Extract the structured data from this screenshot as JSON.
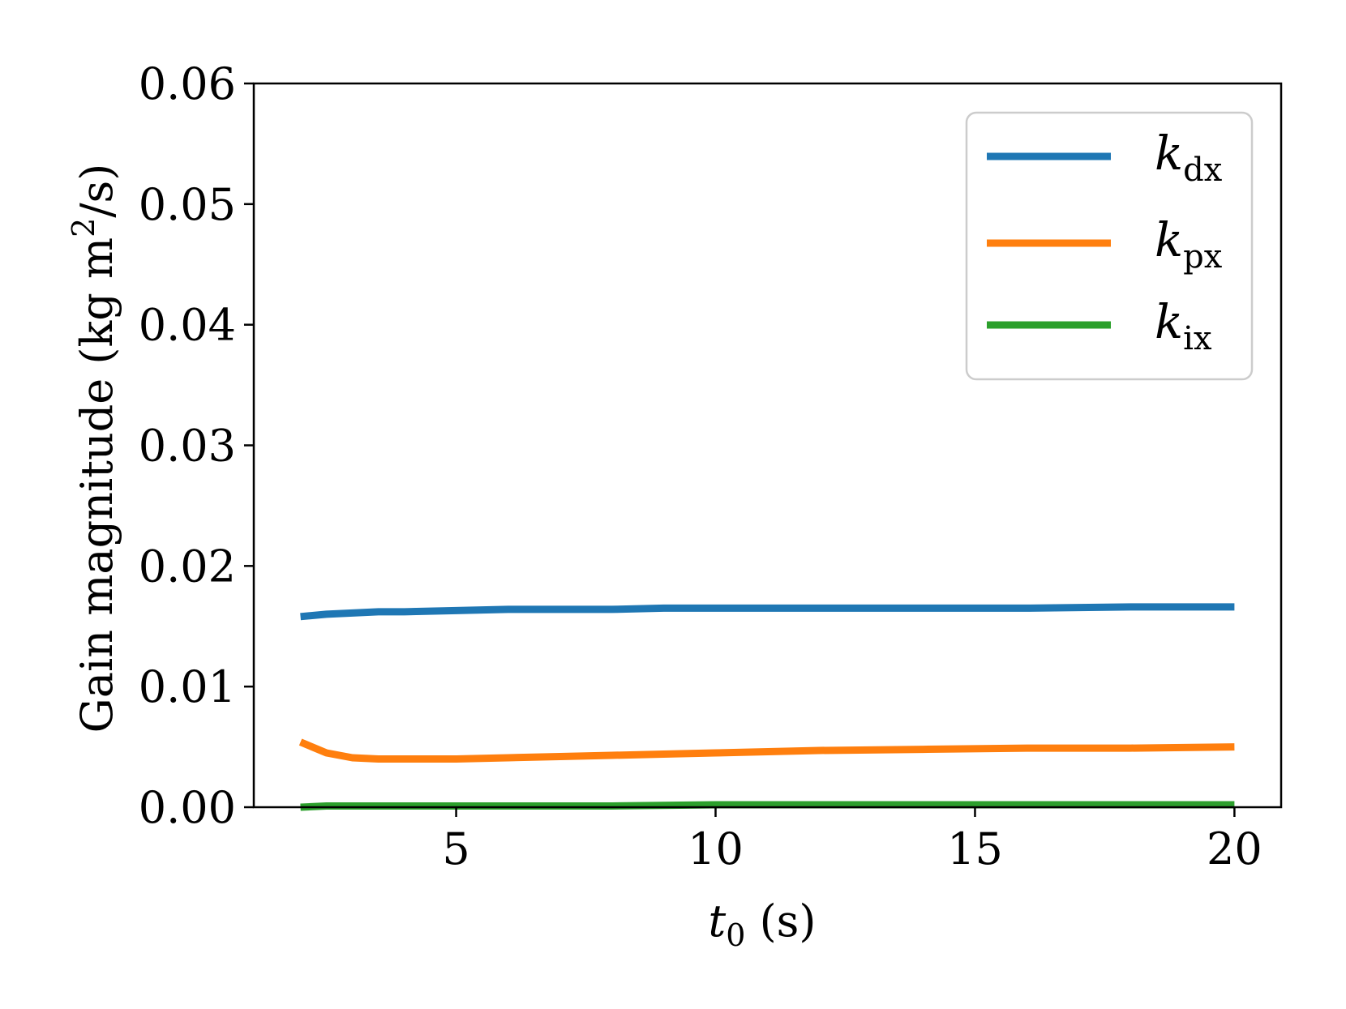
{
  "chart_data": {
    "type": "line",
    "xlabel": {
      "base": "t",
      "sub": "0",
      "unit": " (s)"
    },
    "ylabel": {
      "text": "Gain magnitude (kg m",
      "sup": "2",
      "tail": "/s)"
    },
    "xlim": [
      1.1,
      20.9
    ],
    "ylim": [
      0,
      0.06
    ],
    "xticks": [
      5,
      10,
      15,
      20
    ],
    "xtick_labels": [
      "5",
      "10",
      "15",
      "20"
    ],
    "yticks": [
      0,
      0.01,
      0.02,
      0.03,
      0.04,
      0.05,
      0.06
    ],
    "ytick_labels": [
      "0.00",
      "0.01",
      "0.02",
      "0.03",
      "0.04",
      "0.05",
      "0.06"
    ],
    "grid": false,
    "legend_position": "top-right",
    "series": [
      {
        "name": "k_dx",
        "label_base": "k",
        "label_sub": "dx",
        "color": "#1f77b4",
        "x": [
          2,
          2.5,
          3,
          3.5,
          4,
          5,
          6,
          7,
          8,
          9,
          10,
          12,
          14,
          16,
          18,
          20
        ],
        "y": [
          0.0158,
          0.016,
          0.0161,
          0.0162,
          0.0162,
          0.0163,
          0.0164,
          0.0164,
          0.0164,
          0.0165,
          0.0165,
          0.0165,
          0.0165,
          0.0165,
          0.0166,
          0.0166
        ]
      },
      {
        "name": "k_px",
        "label_base": "k",
        "label_sub": "px",
        "color": "#ff7f0e",
        "x": [
          2,
          2.5,
          3,
          3.5,
          4,
          5,
          6,
          7,
          8,
          9,
          10,
          12,
          14,
          16,
          18,
          20
        ],
        "y": [
          0.0054,
          0.0045,
          0.0041,
          0.004,
          0.004,
          0.004,
          0.0041,
          0.0042,
          0.0043,
          0.0044,
          0.0045,
          0.0047,
          0.0048,
          0.0049,
          0.0049,
          0.005
        ]
      },
      {
        "name": "k_ix",
        "label_base": "k",
        "label_sub": "ix",
        "color": "#2ca02c",
        "x": [
          2,
          2.5,
          3,
          4,
          5,
          6,
          8,
          10,
          12,
          14,
          16,
          18,
          20
        ],
        "y": [
          0.0,
          0.0001,
          0.0001,
          0.0001,
          0.0001,
          0.0001,
          0.0001,
          0.0002,
          0.0002,
          0.0002,
          0.0002,
          0.0002,
          0.0002
        ]
      }
    ]
  }
}
